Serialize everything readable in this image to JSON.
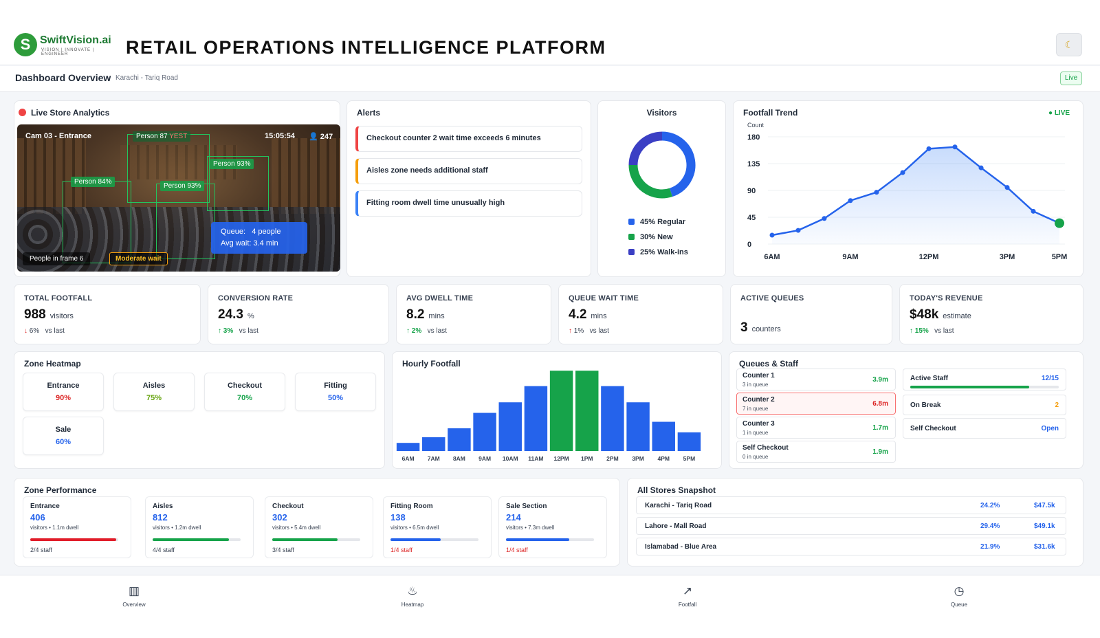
{
  "header": {
    "brand": "SwiftVision.ai",
    "brand_tag": "VISION | INNOVATE | ENGINEER",
    "title": "RETAIL OPERATIONS INTELLIGENCE PLATFORM",
    "theme_icon": "moon-icon"
  },
  "subheader": {
    "title": "Dashboard Overview",
    "location": "Karachi - Tariq Road",
    "live": "Live"
  },
  "live_analytics": {
    "title": "Live Store Analytics",
    "camera": "Cam 03 - Entrance",
    "time": "15:05:54",
    "count": "247",
    "detections": [
      "Person 87",
      "Person 93%",
      "Person 84%",
      "Person 93%"
    ],
    "detection_tag": "YEST",
    "queue_line1": "Queue:   4 people",
    "queue_line2": "Avg wait: 3.4 min",
    "people_in_frame": "People in frame 6",
    "wait_status": "Moderate wait"
  },
  "alerts": {
    "title": "Alerts",
    "items": [
      {
        "text": "Checkout counter 2 wait time exceeds 6 minutes",
        "color": "#ef4444"
      },
      {
        "text": "Aisles zone needs additional staff",
        "color": "#f59e0b"
      },
      {
        "text": "Fitting room dwell time unusually high",
        "color": "#3b82f6"
      }
    ]
  },
  "visitors": {
    "title": "Visitors",
    "segments": [
      {
        "label": "45% Regular",
        "value": 45,
        "color": "#2563eb"
      },
      {
        "label": "30% New",
        "value": 30,
        "color": "#16a34a"
      },
      {
        "label": "25% Walk-ins",
        "value": 25,
        "color": "#3b3fc4"
      }
    ]
  },
  "footfall_trend": {
    "title": "Footfall Trend",
    "live": "LIVE",
    "chart_data": {
      "type": "line",
      "ylabel": "Count",
      "ylim": [
        0,
        180
      ],
      "yticks": [
        0,
        45,
        90,
        135,
        180
      ],
      "xticks": [
        "6AM",
        "9AM",
        "12PM",
        "3PM",
        "5PM"
      ],
      "x": [
        6,
        7,
        8,
        9,
        10,
        11,
        12,
        13,
        14,
        15,
        16,
        17
      ],
      "values": [
        15,
        23,
        43,
        73,
        87,
        120,
        160,
        163,
        128,
        95,
        55,
        35
      ]
    }
  },
  "kpis": [
    {
      "label": "TOTAL FOOTFALL",
      "value": "988",
      "unit": "visitors",
      "arrow": "↓",
      "delta": "6%",
      "suffix": "vs last",
      "dir": "down"
    },
    {
      "label": "CONVERSION RATE",
      "value": "24.3",
      "unit": "%",
      "arrow": "↑",
      "delta": "3%",
      "suffix": "vs last",
      "dir": "up"
    },
    {
      "label": "AVG DWELL TIME",
      "value": "8.2",
      "unit": "mins",
      "arrow": "↑",
      "delta": "2%",
      "suffix": "vs last",
      "dir": "up"
    },
    {
      "label": "QUEUE WAIT TIME",
      "value": "4.2",
      "unit": "mins",
      "arrow": "↑",
      "delta": "1%",
      "suffix": "vs last",
      "dir": "down"
    },
    {
      "label": "ACTIVE QUEUES",
      "value": "3",
      "unit": "counters",
      "arrow": "",
      "delta": "",
      "suffix": "",
      "dir": "none"
    },
    {
      "label": "TODAY'S REVENUE",
      "value": "$48k",
      "unit": "estimate",
      "arrow": "↑",
      "delta": "15%",
      "suffix": "vs last",
      "dir": "up"
    }
  ],
  "heatmap": {
    "title": "Zone Heatmap",
    "zones": [
      {
        "name": "Entrance",
        "pct": "90%",
        "color": "#dc2626"
      },
      {
        "name": "Aisles",
        "pct": "75%",
        "color": "#65a30d"
      },
      {
        "name": "Checkout",
        "pct": "70%",
        "color": "#16a34a"
      },
      {
        "name": "Fitting",
        "pct": "50%",
        "color": "#2563eb"
      },
      {
        "name": "Sale",
        "pct": "60%",
        "color": "#2563eb"
      }
    ]
  },
  "hourly_footfall": {
    "title": "Hourly Footfall",
    "chart_data": {
      "type": "bar",
      "categories": [
        "6AM",
        "7AM",
        "8AM",
        "9AM",
        "10AM",
        "11AM",
        "12PM",
        "1PM",
        "2PM",
        "3PM",
        "4PM",
        "5PM"
      ],
      "values": [
        10,
        17,
        28,
        47,
        60,
        80,
        99,
        99,
        80,
        60,
        36,
        23
      ],
      "highlight": [
        "12PM",
        "1PM"
      ],
      "colors": {
        "normal": "#2563eb",
        "peak": "#16a34a"
      }
    }
  },
  "queues_staff": {
    "title": "Queues & Staff",
    "counters": [
      {
        "name": "Counter 1",
        "sub": "3 in queue",
        "time": "3.9m",
        "color": "#16a34a",
        "alert": false
      },
      {
        "name": "Counter 2",
        "sub": "7 in queue",
        "time": "6.8m",
        "color": "#dc2626",
        "alert": true
      },
      {
        "name": "Counter 3",
        "sub": "1 in queue",
        "time": "1.7m",
        "color": "#16a34a",
        "alert": false
      },
      {
        "name": "Self Checkout",
        "sub": "0 in queue",
        "time": "1.9m",
        "color": "#16a34a",
        "alert": false
      }
    ],
    "active_staff": {
      "label": "Active Staff",
      "value": "12/15",
      "fraction": 0.8
    },
    "on_break": {
      "label": "On Break",
      "value": "2"
    },
    "self_checkout": {
      "label": "Self Checkout",
      "value": "Open"
    }
  },
  "zone_performance": {
    "title": "Zone Performance",
    "zones": [
      {
        "name": "Entrance",
        "value": "406",
        "detail": "visitors • 1.1m dwell",
        "staff": "2/4 staff",
        "fill": 0.98,
        "color": "#e11d2a",
        "staff_color": "#374151"
      },
      {
        "name": "Aisles",
        "value": "812",
        "detail": "visitors • 1.2m dwell",
        "staff": "4/4 staff",
        "fill": 0.87,
        "color": "#16a34a",
        "staff_color": "#374151"
      },
      {
        "name": "Checkout",
        "value": "302",
        "detail": "visitors • 5.4m dwell",
        "staff": "3/4 staff",
        "fill": 0.74,
        "color": "#16a34a",
        "staff_color": "#374151"
      },
      {
        "name": "Fitting Room",
        "value": "138",
        "detail": "visitors • 6.5m dwell",
        "staff": "1/4 staff",
        "fill": 0.57,
        "color": "#2563eb",
        "staff_color": "#dc2626"
      },
      {
        "name": "Sale Section",
        "value": "214",
        "detail": "visitors • 7.3m dwell",
        "staff": "1/4 staff",
        "fill": 0.72,
        "color": "#2563eb",
        "staff_color": "#dc2626"
      }
    ]
  },
  "stores": {
    "title": "All Stores Snapshot",
    "rows": [
      {
        "name": "Karachi - Tariq Road",
        "rate": "24.2%",
        "revenue": "$47.5k"
      },
      {
        "name": "Lahore - Mall Road",
        "rate": "29.4%",
        "revenue": "$49.1k"
      },
      {
        "name": "Islamabad - Blue Area",
        "rate": "21.9%",
        "revenue": "$31.6k"
      }
    ]
  },
  "nav": [
    {
      "label": "Overview",
      "icon": "bar-chart-icon",
      "glyph": "▥"
    },
    {
      "label": "Heatmap",
      "icon": "flame-icon",
      "glyph": "♨"
    },
    {
      "label": "Footfall",
      "icon": "trend-line-icon",
      "glyph": "↗"
    },
    {
      "label": "Queue",
      "icon": "timer-icon",
      "glyph": "◷"
    }
  ]
}
